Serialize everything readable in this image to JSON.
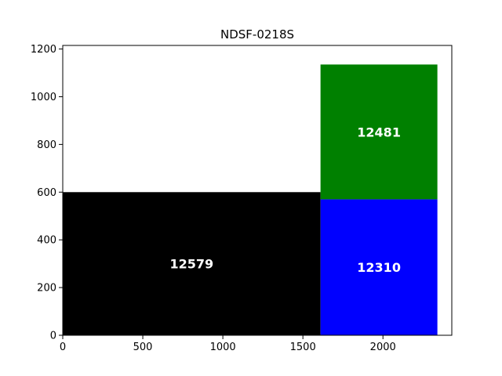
{
  "chart_data": {
    "type": "treemap",
    "title": "NDSF-0218S",
    "xlabel": "",
    "ylabel": "",
    "xlim": [
      0,
      2430
    ],
    "ylim": [
      0,
      1215
    ],
    "xticks": [
      "0",
      "500",
      "1000",
      "1500",
      "2000"
    ],
    "xtick_values": [
      0,
      500,
      1000,
      1500,
      2000
    ],
    "yticks": [
      "0",
      "200",
      "400",
      "600",
      "800",
      "1000",
      "1200"
    ],
    "ytick_values": [
      0,
      200,
      400,
      600,
      800,
      1000,
      1200
    ],
    "grid": false,
    "rects": [
      {
        "label": "12579",
        "color": "#000000",
        "x0": 0,
        "x1": 1610,
        "y0": 0,
        "y1": 600
      },
      {
        "label": "12310",
        "color": "#0000ff",
        "x0": 1610,
        "x1": 2340,
        "y0": 0,
        "y1": 570
      },
      {
        "label": "12481",
        "color": "#008000",
        "x0": 1610,
        "x1": 2340,
        "y0": 570,
        "y1": 1135
      }
    ]
  }
}
